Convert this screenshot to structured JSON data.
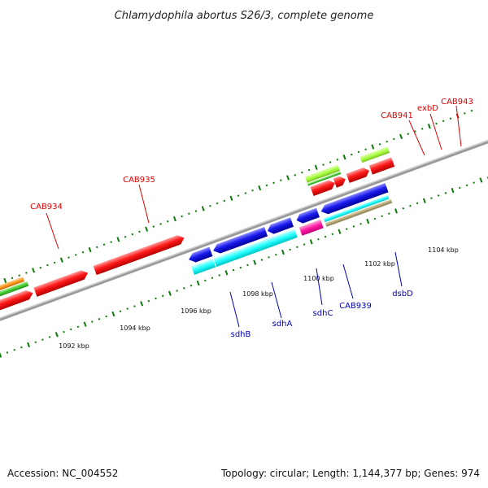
{
  "title": "Chlamydophila abortus S26/3, complete genome",
  "footer": {
    "accession": "Accession: NC_004552",
    "topology": "Topology: circular; Length: 1,144,377 bp; Genes: 974"
  },
  "colors": {
    "forward_gene": "#ff1a1a",
    "reverse_gene": "#1a1aee",
    "cyan_track": "#22ffff",
    "magenta_track": "#ff1aa6",
    "tan_track": "#b8a878",
    "lime_track": "#aaff44",
    "green_track": "#44cc33",
    "orange_track": "#ff9922",
    "tick_green": "#0a7a0a",
    "backbone": "#999999",
    "red_label": "#dd0000",
    "blue_label": "#0000bb"
  },
  "ticks": [
    "1092 kbp",
    "1094 kbp",
    "1096 kbp",
    "1098 kbp",
    "1100 kbp",
    "1102 kbp",
    "1104 kbp"
  ],
  "genes_red": [
    "CAB934",
    "CAB935",
    "CAB941",
    "exbD",
    "CAB943"
  ],
  "genes_blue": [
    "sdhB",
    "sdhA",
    "sdhC",
    "CAB939",
    "dsbD"
  ]
}
